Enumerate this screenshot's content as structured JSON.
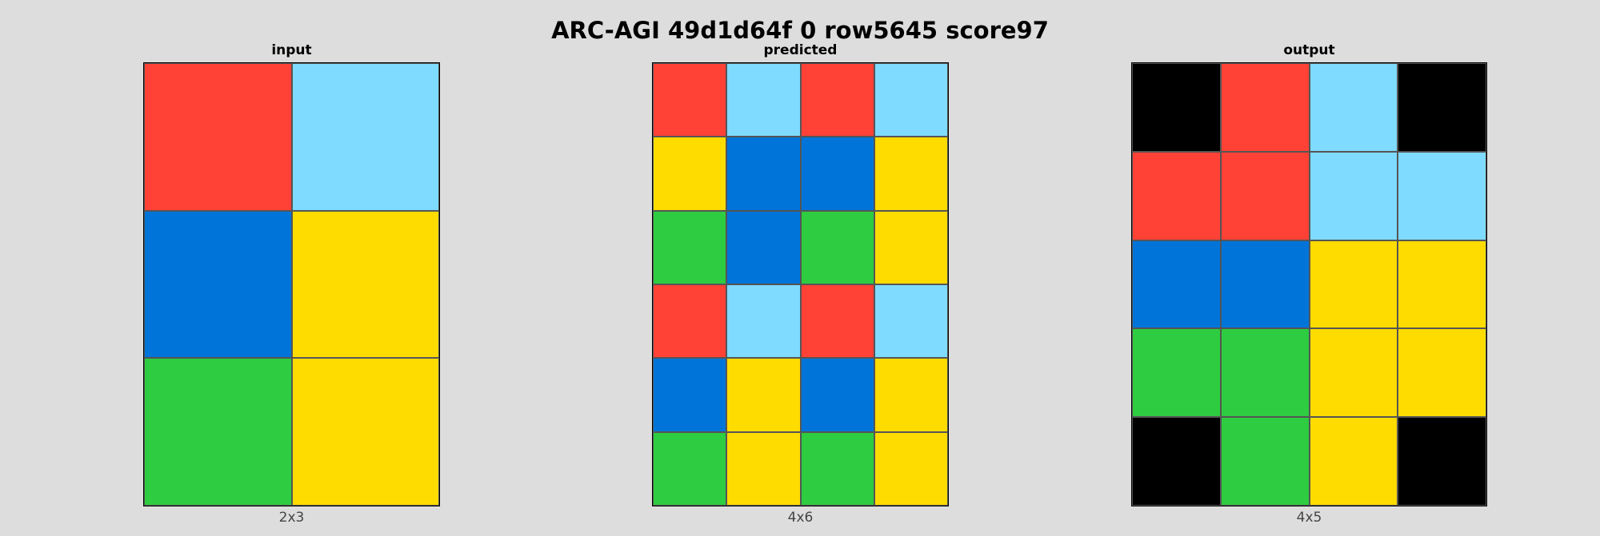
{
  "title": "ARC-AGI 49d1d64f 0 row5645 score97",
  "palette": {
    "0": "#000000",
    "1": "#0074d9",
    "2": "#ff4136",
    "3": "#2ecc40",
    "4": "#ffdc00",
    "8": "#7fdbff"
  },
  "panels": [
    {
      "name": "input",
      "title": "input",
      "caption": "2x3",
      "grid": [
        [
          2,
          8
        ],
        [
          1,
          4
        ],
        [
          3,
          4
        ]
      ]
    },
    {
      "name": "predicted",
      "title": "predicted",
      "caption": "4x6",
      "grid": [
        [
          2,
          8,
          2,
          8
        ],
        [
          4,
          1,
          1,
          4
        ],
        [
          3,
          1,
          3,
          4
        ],
        [
          2,
          8,
          2,
          8
        ],
        [
          1,
          4,
          1,
          4
        ],
        [
          3,
          4,
          3,
          4
        ]
      ]
    },
    {
      "name": "output",
      "title": "output",
      "caption": "4x5",
      "grid": [
        [
          0,
          2,
          8,
          0
        ],
        [
          2,
          2,
          8,
          8
        ],
        [
          1,
          1,
          4,
          4
        ],
        [
          3,
          3,
          4,
          4
        ],
        [
          0,
          3,
          4,
          0
        ]
      ]
    }
  ]
}
